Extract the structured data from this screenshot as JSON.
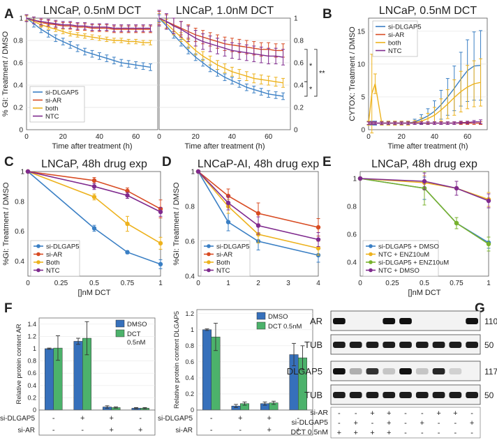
{
  "colors": {
    "dlgap5": "#3a7fc4",
    "ar": "#d84b22",
    "both": "#edb21d",
    "ntc": "#7f2a8e",
    "enz": "#78b22c",
    "dmso_bar": "#3670bb",
    "dct_bar": "#4cb26b"
  },
  "panels": {
    "A": "A",
    "B": "B",
    "C": "C",
    "D": "D",
    "E": "E",
    "F": "F",
    "G": "G"
  },
  "chart_data": [
    {
      "id": "A1",
      "type": "line",
      "title": "LNCaP, 0.5nM DCT",
      "xlabel": "Time after treatment (h)",
      "ylabel": "% GI: Treatment / DMSO",
      "xlim": [
        0,
        72
      ],
      "ylim": [
        0,
        1
      ],
      "xticks": [
        0,
        20,
        40,
        60
      ],
      "yticks": [
        0,
        0.2,
        0.4,
        0.6,
        0.8,
        1
      ],
      "x": [
        0,
        4,
        8,
        12,
        16,
        20,
        24,
        28,
        32,
        36,
        40,
        44,
        48,
        52,
        56,
        60,
        64,
        68
      ],
      "series": [
        {
          "name": "si-DLGAP5",
          "color": "dlgap5",
          "values": [
            1,
            0.95,
            0.9,
            0.86,
            0.82,
            0.79,
            0.76,
            0.73,
            0.7,
            0.68,
            0.66,
            0.64,
            0.62,
            0.6,
            0.59,
            0.58,
            0.57,
            0.56
          ],
          "err": 0.03
        },
        {
          "name": "si-AR",
          "color": "ar",
          "values": [
            1,
            0.98,
            0.96,
            0.95,
            0.94,
            0.93,
            0.93,
            0.92,
            0.92,
            0.91,
            0.91,
            0.91,
            0.9,
            0.9,
            0.9,
            0.9,
            0.9,
            0.9
          ],
          "err": 0.03
        },
        {
          "name": "both",
          "color": "both",
          "values": [
            1,
            0.97,
            0.94,
            0.92,
            0.9,
            0.88,
            0.86,
            0.85,
            0.84,
            0.83,
            0.82,
            0.81,
            0.8,
            0.8,
            0.79,
            0.79,
            0.78,
            0.78
          ],
          "err": 0.02
        },
        {
          "name": "NTC",
          "color": "ntc",
          "values": [
            1,
            0.98,
            0.97,
            0.96,
            0.95,
            0.94,
            0.94,
            0.93,
            0.93,
            0.92,
            0.92,
            0.92,
            0.91,
            0.91,
            0.91,
            0.91,
            0.91,
            0.91
          ],
          "err": 0.03
        }
      ],
      "legend": [
        "si-DLGAP5",
        "si-AR",
        "both",
        "NTC"
      ]
    },
    {
      "id": "A2",
      "type": "line",
      "title": "LNCaP, 1.0nM DCT",
      "xlabel": "Time after treatment (h)",
      "xlim": [
        0,
        72
      ],
      "ylim": [
        0,
        1
      ],
      "xticks": [
        0,
        20,
        40,
        60
      ],
      "yticks": [
        0,
        0.2,
        0.4,
        0.6,
        0.8,
        1
      ],
      "x": [
        0,
        4,
        8,
        12,
        16,
        20,
        24,
        28,
        32,
        36,
        40,
        44,
        48,
        52,
        56,
        60,
        64,
        68
      ],
      "series": [
        {
          "name": "si-DLGAP5",
          "color": "dlgap5",
          "values": [
            1,
            0.93,
            0.85,
            0.78,
            0.71,
            0.65,
            0.6,
            0.55,
            0.51,
            0.47,
            0.44,
            0.41,
            0.38,
            0.36,
            0.34,
            0.32,
            0.31,
            0.3
          ],
          "err": 0.03
        },
        {
          "name": "si-AR",
          "color": "ar",
          "values": [
            1,
            0.97,
            0.94,
            0.91,
            0.88,
            0.85,
            0.83,
            0.81,
            0.79,
            0.77,
            0.76,
            0.75,
            0.74,
            0.73,
            0.72,
            0.72,
            0.71,
            0.71
          ],
          "err": 0.06
        },
        {
          "name": "both",
          "color": "both",
          "values": [
            1,
            0.95,
            0.89,
            0.83,
            0.77,
            0.71,
            0.66,
            0.62,
            0.58,
            0.55,
            0.52,
            0.5,
            0.48,
            0.46,
            0.45,
            0.44,
            0.43,
            0.42
          ],
          "err": 0.04
        },
        {
          "name": "NTC",
          "color": "ntc",
          "values": [
            1,
            0.97,
            0.93,
            0.9,
            0.86,
            0.82,
            0.79,
            0.77,
            0.75,
            0.73,
            0.71,
            0.7,
            0.69,
            0.68,
            0.67,
            0.66,
            0.66,
            0.65
          ],
          "err": 0.07
        }
      ],
      "significance": [
        "*",
        "**",
        "*"
      ]
    },
    {
      "id": "B",
      "type": "line",
      "title": "LNCaP, 0.5nM DCT",
      "xlabel": "Time after treatment (h)",
      "ylabel": "CYTOX: Treatment / DMSO",
      "xlim": [
        0,
        72
      ],
      "ylim": [
        0,
        17
      ],
      "xticks": [
        0,
        20,
        40,
        60
      ],
      "yticks": [
        0,
        5,
        10,
        15
      ],
      "x": [
        0,
        2,
        4,
        8,
        12,
        16,
        20,
        24,
        28,
        32,
        36,
        40,
        44,
        48,
        52,
        56,
        60,
        64,
        68
      ],
      "series": [
        {
          "name": "si-DLGAP5",
          "color": "dlgap5",
          "values": [
            1,
            1,
            1,
            1,
            1,
            1,
            1,
            1,
            1.2,
            1.6,
            2.1,
            2.8,
            3.8,
            5.0,
            6.3,
            7.7,
            9.0,
            9.7,
            9.8
          ],
          "err": [
            0.3,
            0.3,
            0.3,
            0.3,
            0.3,
            0.3,
            0.3,
            0.3,
            0.4,
            0.7,
            1.1,
            1.6,
            2.2,
            2.8,
            3.4,
            4.1,
            4.7,
            5.2,
            5.3
          ]
        },
        {
          "name": "si-AR",
          "color": "ar",
          "values": [
            1,
            1,
            1,
            1,
            1,
            1,
            1,
            1,
            1,
            1,
            1,
            1,
            1,
            1,
            1,
            1,
            1,
            1,
            1
          ],
          "err": [
            0.2,
            0.2,
            0.2,
            0.2,
            0.2,
            0.2,
            0.2,
            0.2,
            0.2,
            0.2,
            0.2,
            0.2,
            0.2,
            0.2,
            0.2,
            0.2,
            0.2,
            0.2,
            0.2
          ]
        },
        {
          "name": "both",
          "color": "both",
          "values": [
            1,
            5.5,
            7,
            1,
            1,
            1,
            1,
            1,
            1.1,
            1.3,
            1.7,
            2.2,
            3.0,
            3.9,
            4.9,
            5.8,
            6.5,
            7.0,
            7.2
          ],
          "err": [
            0.3,
            6,
            1.5,
            0.3,
            0.3,
            0.3,
            0.3,
            0.3,
            0.3,
            0.5,
            0.8,
            1.2,
            1.7,
            2.2,
            2.7,
            3.1,
            3.3,
            3.5,
            3.6
          ]
        },
        {
          "name": "NTC",
          "color": "ntc",
          "values": [
            1,
            1,
            1,
            1,
            1,
            1,
            1,
            1,
            1,
            1,
            1,
            1,
            1,
            1,
            1,
            1.1,
            1.1,
            1.2,
            1.2
          ],
          "err": [
            0.2,
            0.2,
            0.2,
            0.2,
            0.2,
            0.2,
            0.2,
            0.2,
            0.2,
            0.2,
            0.2,
            0.2,
            0.2,
            0.2,
            0.2,
            0.2,
            0.2,
            0.2,
            0.3
          ]
        }
      ],
      "legend": [
        "si-DLGAP5",
        "si-AR",
        "both",
        "NTC"
      ]
    },
    {
      "id": "C",
      "type": "line",
      "title": "LNCaP, 48h drug exp",
      "xlabel": "[]nM DCT",
      "ylabel": "%GI: Treatment / DMSO",
      "xlim": [
        0,
        1
      ],
      "ylim": [
        0.3,
        1
      ],
      "xticks": [
        "0",
        "0.25",
        "0.5",
        "0.75",
        "1"
      ],
      "yticks": [
        "0.4",
        "0.6",
        "0.8",
        "1"
      ],
      "x": [
        0,
        0.5,
        0.75,
        1
      ],
      "series": [
        {
          "name": "si-DLGAP5",
          "color": "dlgap5",
          "values": [
            1,
            0.62,
            0.46,
            0.38
          ],
          "err": [
            0,
            0.02,
            0.01,
            0.03
          ]
        },
        {
          "name": "si-AR",
          "color": "ar",
          "values": [
            1,
            0.94,
            0.87,
            0.75
          ],
          "err": [
            0,
            0.02,
            0.02,
            0.06
          ]
        },
        {
          "name": "Both",
          "color": "both",
          "values": [
            1,
            0.83,
            0.65,
            0.52
          ],
          "err": [
            0,
            0.02,
            0.05,
            0.04
          ]
        },
        {
          "name": "NTC",
          "color": "ntc",
          "values": [
            1,
            0.9,
            0.84,
            0.73
          ],
          "err": [
            0,
            0.02,
            0.02,
            0.03
          ]
        }
      ],
      "legend": [
        "si-DLGAP5",
        "si-AR",
        "Both",
        "NTC"
      ]
    },
    {
      "id": "D",
      "type": "line",
      "title": "LNCaP-AI, 48h drug exp",
      "ylabel": "%GI: Treatment / DMSO",
      "xlim": [
        0,
        4
      ],
      "ylim": [
        0.4,
        1
      ],
      "xticks": [
        "0",
        "1",
        "2",
        "3",
        "4"
      ],
      "yticks": [
        "0.4",
        "0.6",
        "0.8",
        "1"
      ],
      "x": [
        0,
        1,
        2,
        4
      ],
      "series": [
        {
          "name": "si-DLGAP5",
          "color": "dlgap5",
          "values": [
            1,
            0.71,
            0.6,
            0.52
          ],
          "err": [
            0,
            0.05,
            0.05,
            0.04
          ]
        },
        {
          "name": "si-AR",
          "color": "ar",
          "values": [
            1,
            0.86,
            0.76,
            0.68
          ],
          "err": [
            0,
            0.04,
            0.06,
            0.05
          ]
        },
        {
          "name": "Both",
          "color": "both",
          "values": [
            1,
            0.8,
            0.64,
            0.56
          ],
          "err": [
            0,
            0.04,
            0.05,
            0.04
          ]
        },
        {
          "name": "NTC",
          "color": "ntc",
          "values": [
            1,
            0.82,
            0.69,
            0.61
          ],
          "err": [
            0,
            0.04,
            0.05,
            0.04
          ]
        }
      ],
      "legend": [
        "si-DLGAP5",
        "si-AR",
        "Both",
        "NTC"
      ]
    },
    {
      "id": "E",
      "type": "line",
      "title": "LNCaP, 48h drug exp",
      "xlabel": "[]nM DCT",
      "xlim": [
        0,
        1
      ],
      "ylim": [
        0.3,
        1.05
      ],
      "xticks": [
        "0",
        "0.25",
        "0.5",
        "0.75",
        "1"
      ],
      "yticks": [
        "0.4",
        "0.6",
        "0.8",
        "1"
      ],
      "x": [
        0,
        0.5,
        0.75,
        1
      ],
      "series": [
        {
          "name": "si-DLGAP5 + DMSO",
          "color": "dlgap5",
          "values": [
            1,
            0.93,
            0.68,
            0.54
          ],
          "err": [
            0,
            0.08,
            0.04,
            0.04
          ]
        },
        {
          "name": "NTC + ENZ10uM",
          "color": "both",
          "values": [
            1,
            0.97,
            0.93,
            0.85
          ],
          "err": [
            0,
            0.05,
            0.05,
            0.05
          ]
        },
        {
          "name": "si-DLGAP5 + ENZ10uM",
          "color": "enz",
          "values": [
            1,
            0.93,
            0.68,
            0.53
          ],
          "err": [
            0,
            0.12,
            0.04,
            0.05
          ]
        },
        {
          "name": "NTC + DMSO",
          "color": "ntc",
          "values": [
            1,
            0.98,
            0.93,
            0.84
          ],
          "err": [
            0,
            0.06,
            0.05,
            0.05
          ]
        }
      ],
      "legend": [
        "si-DLGAP5 + DMSO",
        "NTC + ENZ10uM",
        "si-DLGAP5 + ENZ10uM",
        "NTC + DMSO"
      ]
    },
    {
      "id": "F1",
      "type": "bar",
      "ylabel": "Relative protein content AR",
      "ylim": [
        0,
        1.5
      ],
      "yticks": [
        "0",
        "0.2",
        "0.4",
        "0.6",
        "0.8",
        "1",
        "1.2",
        "1.4"
      ],
      "categories": [
        "1",
        "2",
        "3",
        "4"
      ],
      "series": [
        {
          "name": "DMSO",
          "color": "dmso_bar",
          "values": [
            1.0,
            1.12,
            0.05,
            0.03
          ],
          "err": [
            0.01,
            0.05,
            0.02,
            0.01
          ]
        },
        {
          "name": "DCT 0.5nM",
          "color": "dct_bar",
          "values": [
            1.01,
            1.17,
            0.04,
            0.03
          ],
          "err": [
            0.2,
            0.27,
            0.01,
            0.01
          ]
        }
      ],
      "legend": [
        "DMSO",
        "DCT",
        "0.5nM"
      ],
      "row_labels": [
        "si-DLGAP5",
        "si-AR"
      ],
      "table": [
        [
          "-",
          "+",
          "+",
          "-"
        ],
        [
          "-",
          "-",
          "+",
          "+"
        ]
      ]
    },
    {
      "id": "F2",
      "type": "bar",
      "ylabel": "Relative protein content DLGAP5",
      "ylim": [
        0,
        1.25
      ],
      "yticks": [
        "0",
        "0.2",
        "0.4",
        "0.6",
        "0.8",
        "1",
        "1.2"
      ],
      "categories": [
        "1",
        "2",
        "3",
        "4"
      ],
      "series": [
        {
          "name": "DMSO",
          "color": "dmso_bar",
          "values": [
            1.0,
            0.05,
            0.08,
            0.69
          ],
          "err": [
            0.01,
            0.02,
            0.02,
            0.14
          ]
        },
        {
          "name": "DCT 0.5nM",
          "color": "dct_bar",
          "values": [
            0.91,
            0.08,
            0.09,
            0.65
          ],
          "err": [
            0.17,
            0.02,
            0.02,
            0.15
          ]
        }
      ],
      "legend": [
        "DMSO",
        "DCT 0.5nM"
      ],
      "row_labels": [
        "si-DLGAP5",
        "si-AR"
      ],
      "table": [
        [
          "-",
          "+",
          "+",
          "-"
        ],
        [
          "-",
          "-",
          "+",
          "+"
        ]
      ]
    }
  ],
  "blot": {
    "strips": [
      {
        "label": "AR",
        "size": "110"
      },
      {
        "label": "TUB",
        "size": "50"
      },
      {
        "label": "DLGAP5",
        "size": "117"
      },
      {
        "label": "TUB",
        "size": "50"
      }
    ],
    "lane_intensity": {
      "AR": [
        1,
        0,
        0,
        1,
        1,
        0,
        0,
        0,
        1
      ],
      "DLGAP5": [
        1,
        0.3,
        0.85,
        0.2,
        1,
        0.2,
        0.9,
        0.15,
        0.0
      ]
    },
    "rows": [
      {
        "label": "si-AR",
        "cells": [
          "-",
          "-",
          "+",
          "+",
          "-",
          "-",
          "+",
          "+",
          "-"
        ]
      },
      {
        "label": "si-DLGAP5",
        "cells": [
          "-",
          "+",
          "-",
          "+",
          "-",
          "+",
          "-",
          "-",
          "+"
        ]
      },
      {
        "label": "DCT 0.5nM",
        "cells": [
          "+",
          "+",
          "+",
          "+",
          "-",
          "-",
          "-",
          "-",
          "-"
        ]
      }
    ]
  }
}
